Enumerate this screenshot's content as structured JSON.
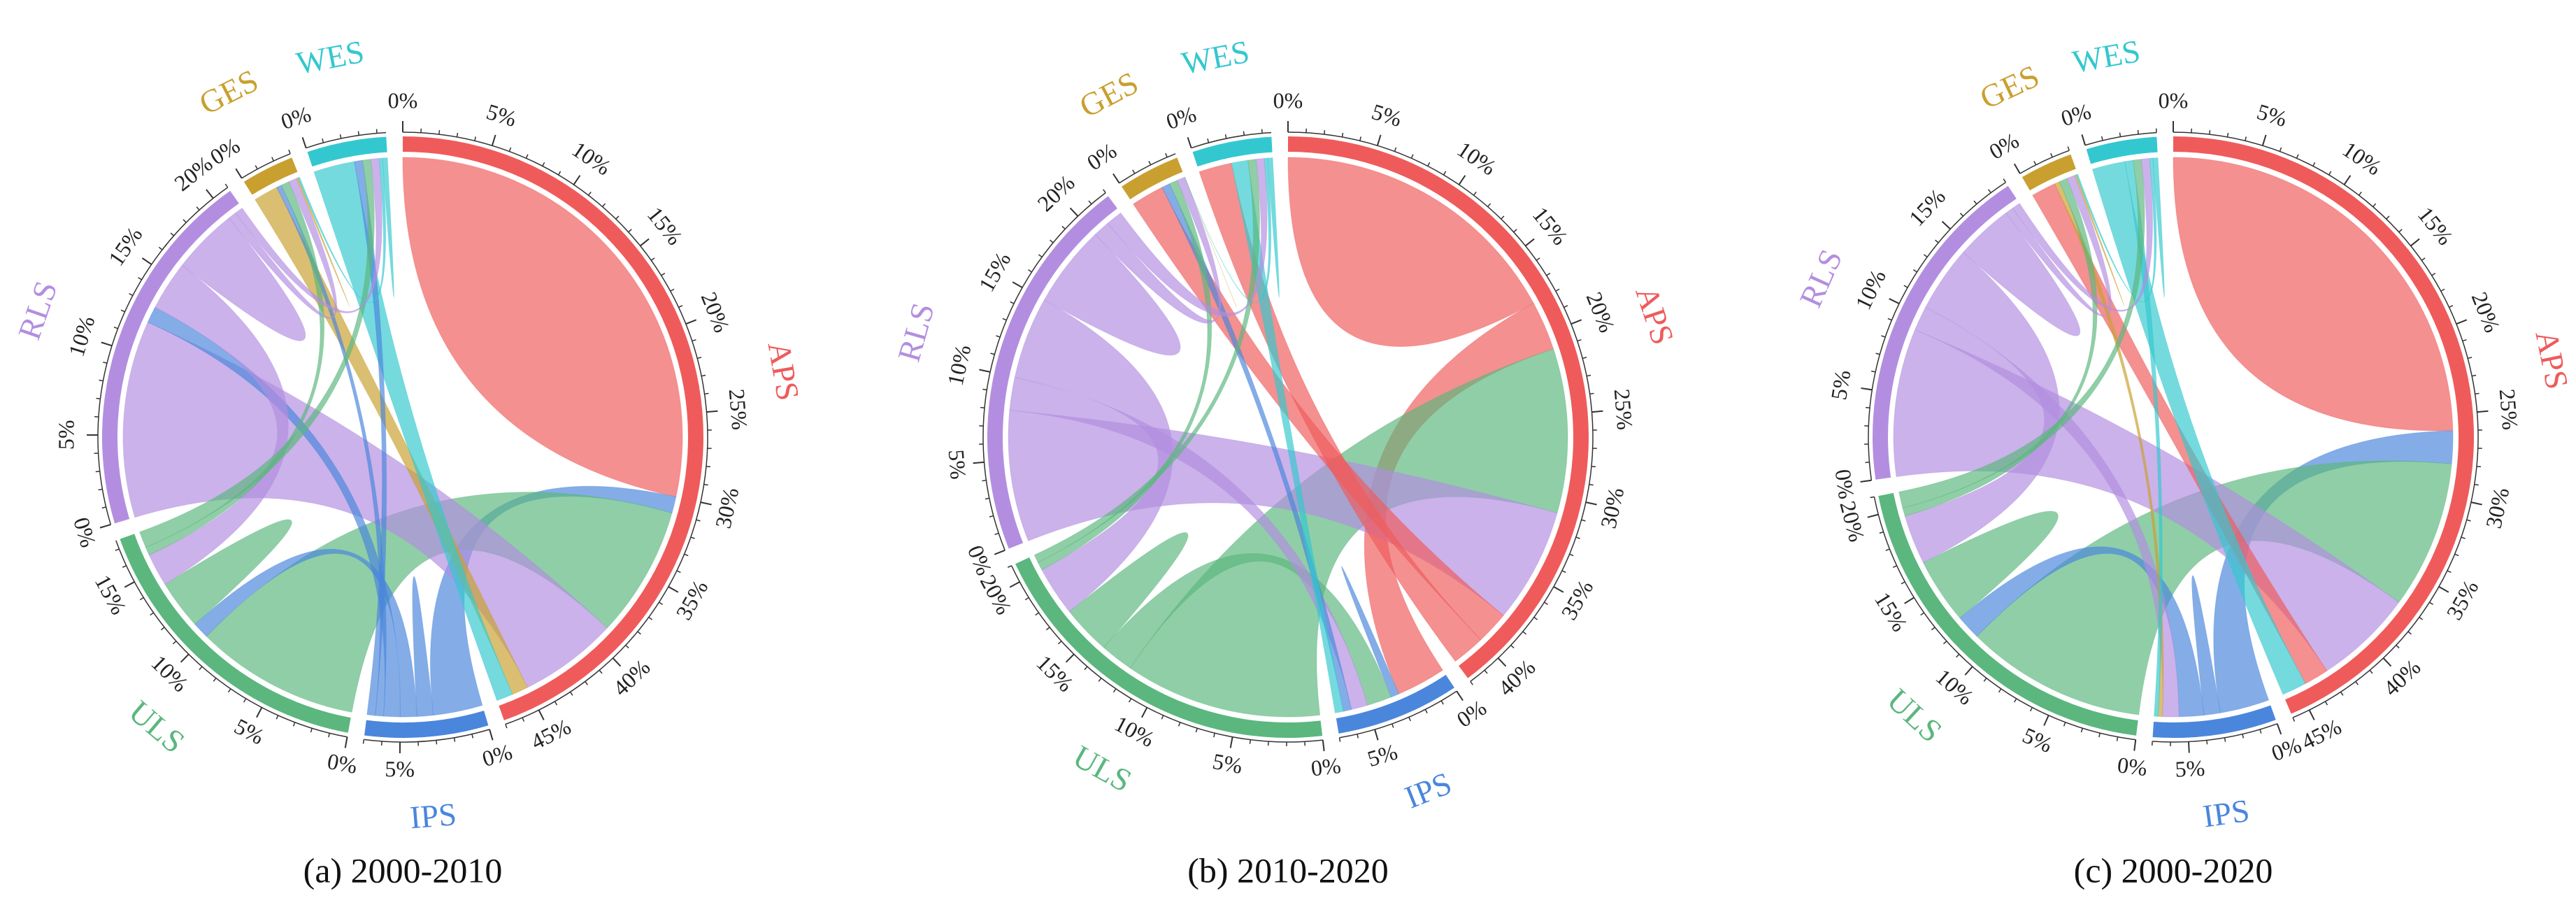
{
  "chart_data": [
    {
      "type": "chord",
      "title": "(a) 2000-2010",
      "minor_tick_step": 1,
      "groups": [
        {
          "name": "APS",
          "color": "#ef5b5b",
          "ticks": [
            {
              "value": 0,
              "label": "0%"
            },
            {
              "value": 5,
              "label": "5%"
            },
            {
              "value": 10,
              "label": "10%"
            },
            {
              "value": 15,
              "label": "15%"
            },
            {
              "value": 20,
              "label": "20%"
            },
            {
              "value": 25,
              "label": "25%"
            },
            {
              "value": 30,
              "label": "30%"
            },
            {
              "value": 35,
              "label": "35%"
            },
            {
              "value": 40,
              "label": "40%"
            },
            {
              "value": 45,
              "label": "45%"
            }
          ]
        },
        {
          "name": "IPS",
          "color": "#4a86dc",
          "ticks": [
            {
              "value": 0,
              "label": "0%"
            },
            {
              "value": 5,
              "label": "5%"
            }
          ]
        },
        {
          "name": "ULS",
          "color": "#5bb77e",
          "ticks": [
            {
              "value": 0,
              "label": "0%"
            },
            {
              "value": 5,
              "label": "5%"
            },
            {
              "value": 10,
              "label": "10%"
            },
            {
              "value": 15,
              "label": "15%"
            }
          ]
        },
        {
          "name": "RLS",
          "color": "#b38ee0",
          "ticks": [
            {
              "value": 0,
              "label": "0%"
            },
            {
              "value": 5,
              "label": "5%"
            },
            {
              "value": 10,
              "label": "10%"
            },
            {
              "value": 15,
              "label": "15%"
            },
            {
              "value": 20,
              "label": "20%"
            }
          ]
        },
        {
          "name": "GES",
          "color": "#c9a02f",
          "ticks": [
            {
              "value": 0,
              "label": "0%"
            }
          ]
        },
        {
          "name": "WES",
          "color": "#33c8cf",
          "ticks": [
            {
              "value": 0,
              "label": "0%"
            }
          ]
        }
      ],
      "matrix": [
        [
          30,
          1,
          8,
          6,
          1,
          1
        ],
        [
          3,
          1,
          1,
          1,
          0.5,
          0.5
        ],
        [
          10,
          1,
          3,
          2,
          0.5,
          1
        ],
        [
          12,
          1,
          3,
          4,
          0.5,
          0.5
        ],
        [
          1.5,
          0.3,
          0.5,
          0.5,
          0.1,
          0.1
        ],
        [
          2.5,
          0.5,
          0.5,
          0.5,
          0.2,
          0.3
        ]
      ]
    },
    {
      "type": "chord",
      "title": "(b) 2010-2020",
      "minor_tick_step": 1,
      "groups": [
        {
          "name": "APS",
          "color": "#ef5b5b",
          "ticks": [
            {
              "value": 0,
              "label": "0%"
            },
            {
              "value": 5,
              "label": "5%"
            },
            {
              "value": 10,
              "label": "10%"
            },
            {
              "value": 15,
              "label": "15%"
            },
            {
              "value": 20,
              "label": "20%"
            },
            {
              "value": 25,
              "label": "25%"
            },
            {
              "value": 30,
              "label": "30%"
            },
            {
              "value": 35,
              "label": "35%"
            },
            {
              "value": 40,
              "label": "40%"
            }
          ]
        },
        {
          "name": "IPS",
          "color": "#4a86dc",
          "ticks": [
            {
              "value": 0,
              "label": "0%"
            },
            {
              "value": 5,
              "label": "5%"
            }
          ]
        },
        {
          "name": "ULS",
          "color": "#5bb77e",
          "ticks": [
            {
              "value": 0,
              "label": "0%"
            },
            {
              "value": 5,
              "label": "5%"
            },
            {
              "value": 10,
              "label": "10%"
            },
            {
              "value": 15,
              "label": "15%"
            },
            {
              "value": 20,
              "label": "20%"
            }
          ]
        },
        {
          "name": "RLS",
          "color": "#b38ee0",
          "ticks": [
            {
              "value": 0,
              "label": "0%"
            },
            {
              "value": 5,
              "label": "5%"
            },
            {
              "value": 10,
              "label": "10%"
            },
            {
              "value": 15,
              "label": "15%"
            },
            {
              "value": 20,
              "label": "20%"
            }
          ]
        },
        {
          "name": "GES",
          "color": "#c9a02f",
          "ticks": [
            {
              "value": 0,
              "label": "0%"
            }
          ]
        },
        {
          "name": "WES",
          "color": "#33c8cf",
          "ticks": [
            {
              "value": 0,
              "label": "0%"
            }
          ]
        }
      ],
      "matrix": [
        [
          18,
          3,
          10,
          7,
          2,
          2
        ],
        [
          3,
          0.5,
          1.5,
          1,
          0.5,
          0.5
        ],
        [
          12,
          2,
          3,
          3,
          0.5,
          0.5
        ],
        [
          8,
          2,
          5,
          5,
          1,
          1
        ],
        [
          2,
          0.5,
          0.5,
          0.5,
          0,
          0
        ],
        [
          2,
          1,
          0.5,
          0.5,
          0.2,
          0.3
        ]
      ]
    },
    {
      "type": "chord",
      "title": "(c) 2000-2020",
      "minor_tick_step": 1,
      "groups": [
        {
          "name": "APS",
          "color": "#ef5b5b",
          "ticks": [
            {
              "value": 0,
              "label": "0%"
            },
            {
              "value": 5,
              "label": "5%"
            },
            {
              "value": 10,
              "label": "10%"
            },
            {
              "value": 15,
              "label": "15%"
            },
            {
              "value": 20,
              "label": "20%"
            },
            {
              "value": 25,
              "label": "25%"
            },
            {
              "value": 30,
              "label": "30%"
            },
            {
              "value": 35,
              "label": "35%"
            },
            {
              "value": 40,
              "label": "40%"
            },
            {
              "value": 45,
              "label": "45%"
            }
          ]
        },
        {
          "name": "IPS",
          "color": "#4a86dc",
          "ticks": [
            {
              "value": 0,
              "label": "0%"
            },
            {
              "value": 5,
              "label": "5%"
            }
          ]
        },
        {
          "name": "ULS",
          "color": "#5bb77e",
          "ticks": [
            {
              "value": 0,
              "label": "0%"
            },
            {
              "value": 5,
              "label": "5%"
            },
            {
              "value": 10,
              "label": "10%"
            },
            {
              "value": 15,
              "label": "15%"
            },
            {
              "value": 20,
              "label": "20%"
            }
          ]
        },
        {
          "name": "RLS",
          "color": "#b38ee0",
          "ticks": [
            {
              "value": 0,
              "label": "0%"
            },
            {
              "value": 5,
              "label": "5%"
            },
            {
              "value": 10,
              "label": "10%"
            },
            {
              "value": 15,
              "label": "15%"
            }
          ]
        },
        {
          "name": "GES",
          "color": "#c9a02f",
          "ticks": [
            {
              "value": 0,
              "label": "0%"
            }
          ]
        },
        {
          "name": "WES",
          "color": "#33c8cf",
          "ticks": [
            {
              "value": 0,
              "label": "0%"
            }
          ]
        }
      ],
      "matrix": [
        [
          26,
          2,
          9,
          6,
          1.5,
          1.5
        ],
        [
          3,
          1,
          1.5,
          1,
          0.25,
          0.25
        ],
        [
          11,
          1.5,
          4,
          3,
          0.5,
          1
        ],
        [
          9,
          1.5,
          4,
          3.5,
          0.5,
          0.5
        ],
        [
          1.5,
          0.3,
          0.5,
          0.5,
          0.1,
          0.1
        ],
        [
          2,
          0.5,
          0.5,
          0.5,
          0.2,
          0.3
        ]
      ]
    }
  ]
}
